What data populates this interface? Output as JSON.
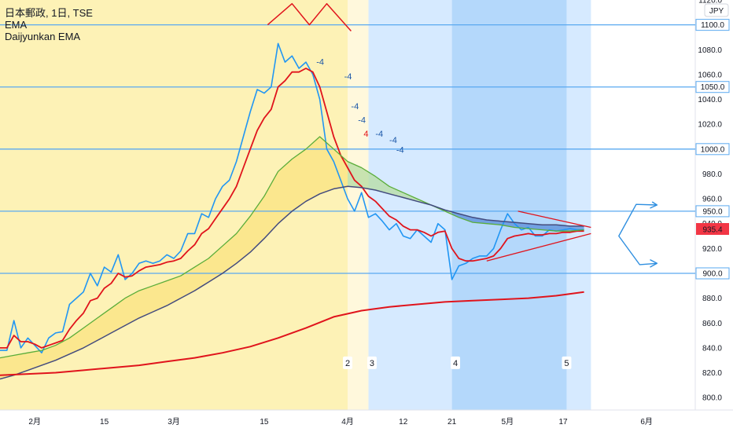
{
  "legend": {
    "symbol_line": "日本郵政, 1日, TSE",
    "ema": "EMA",
    "daijyunkan": "Daijyunkan EMA"
  },
  "chart_data": {
    "type": "line",
    "currency": "JPY",
    "ylim": [
      790,
      1120
    ],
    "y_ticks": [
      "1120.0",
      "1100.0",
      "1080.0",
      "1060.0",
      "1040.0",
      "1020.0",
      "1000.0",
      "980.0",
      "960.0",
      "940.0",
      "920.0",
      "900.0",
      "880.0",
      "860.0",
      "840.0",
      "820.0",
      "800.0"
    ],
    "x_ticks": [
      {
        "label": "2月",
        "x": 5
      },
      {
        "label": "15",
        "x": 15
      },
      {
        "label": "3月",
        "x": 25
      },
      {
        "label": "15",
        "x": 38
      },
      {
        "label": "4月",
        "x": 50
      },
      {
        "label": "12",
        "x": 58
      },
      {
        "label": "21",
        "x": 65
      },
      {
        "label": "5月",
        "x": 73
      },
      {
        "label": "17",
        "x": 81
      },
      {
        "label": "6月",
        "x": 93
      }
    ],
    "x_range": [
      0,
      100
    ],
    "horizontal_levels": [
      {
        "value": 1100,
        "label": "1100.0"
      },
      {
        "value": 1050,
        "label": "1050.0"
      },
      {
        "value": 1000,
        "label": "1000.0"
      },
      {
        "value": 950,
        "label": "950.0"
      },
      {
        "value": 900,
        "label": "900.0"
      }
    ],
    "current_price": {
      "value": 935.4,
      "label": "935.4"
    },
    "background_zones": [
      {
        "from": 0,
        "to": 50,
        "color": "#fdf2b6"
      },
      {
        "from": 50,
        "to": 53,
        "color": "#fff8dc"
      },
      {
        "from": 53,
        "to": 65,
        "color": "#d6eaff"
      },
      {
        "from": 65,
        "to": 81.5,
        "color": "#b4d8fb"
      },
      {
        "from": 81.5,
        "to": 85,
        "color": "#d6eaff"
      }
    ],
    "zone_labels": [
      {
        "label": "2",
        "x": 50,
        "y": 828
      },
      {
        "label": "3",
        "x": 53.5,
        "y": 828
      },
      {
        "label": "4",
        "x": 65.5,
        "y": 828
      },
      {
        "label": "5",
        "x": 81.5,
        "y": 828
      }
    ],
    "series": [
      {
        "name": "",
        "color": "#2196f3",
        "x": [
          0,
          1,
          2,
          3,
          4,
          5,
          6,
          7,
          8,
          9,
          10,
          11,
          12,
          13,
          14,
          15,
          16,
          17,
          18,
          19,
          20,
          21,
          22,
          23,
          24,
          25,
          26,
          27,
          28,
          29,
          30,
          31,
          32,
          33,
          34,
          35,
          36,
          37,
          38,
          39,
          40,
          41,
          42,
          43,
          44,
          45,
          46,
          47,
          48,
          49,
          50,
          51,
          52,
          53,
          54,
          55,
          56,
          57,
          58,
          59,
          60,
          61,
          62,
          63,
          64,
          65,
          66,
          67,
          68,
          69,
          70,
          71,
          72,
          73,
          74,
          75,
          76,
          77,
          78,
          79,
          80,
          81,
          82,
          83,
          84
        ],
        "values": [
          838,
          838,
          862,
          840,
          848,
          842,
          836,
          848,
          852,
          853,
          875,
          880,
          885,
          900,
          890,
          905,
          901,
          915,
          895,
          900,
          908,
          910,
          908,
          910,
          915,
          912,
          918,
          932,
          932,
          948,
          945,
          960,
          970,
          975,
          990,
          1010,
          1030,
          1048,
          1045,
          1050,
          1085,
          1070,
          1075,
          1065,
          1070,
          1060,
          1040,
          1000,
          990,
          975,
          960,
          950,
          965,
          945,
          948,
          942,
          935,
          940,
          930,
          928,
          935,
          930,
          925,
          940,
          935,
          895,
          906,
          908,
          912,
          914,
          914,
          920,
          935,
          948,
          940,
          935,
          937,
          930,
          930,
          935,
          934,
          935,
          936,
          935,
          935
        ]
      },
      {
        "name": "",
        "color": "#e0141c",
        "x": [
          0,
          1,
          2,
          3,
          4,
          5,
          6,
          7,
          8,
          9,
          10,
          11,
          12,
          13,
          14,
          15,
          16,
          17,
          18,
          19,
          20,
          21,
          22,
          23,
          24,
          25,
          26,
          27,
          28,
          29,
          30,
          31,
          32,
          33,
          34,
          35,
          36,
          37,
          38,
          39,
          40,
          41,
          42,
          43,
          44,
          45,
          46,
          47,
          48,
          49,
          50,
          51,
          52,
          53,
          54,
          55,
          56,
          57,
          58,
          59,
          60,
          61,
          62,
          63,
          64,
          65,
          66,
          67,
          68,
          69,
          70,
          71,
          72,
          73,
          74,
          75,
          76,
          77,
          78,
          79,
          80,
          81,
          82,
          83,
          84
        ],
        "values": [
          840,
          840,
          850,
          845,
          845,
          843,
          840,
          842,
          844,
          846,
          855,
          862,
          868,
          878,
          880,
          888,
          892,
          900,
          897,
          898,
          902,
          905,
          906,
          907,
          909,
          910,
          912,
          918,
          923,
          932,
          936,
          944,
          952,
          960,
          970,
          985,
          1000,
          1015,
          1025,
          1032,
          1050,
          1055,
          1062,
          1062,
          1065,
          1062,
          1050,
          1030,
          1010,
          995,
          985,
          975,
          970,
          962,
          958,
          952,
          946,
          943,
          938,
          935,
          935,
          933,
          930,
          933,
          934,
          920,
          912,
          910,
          910,
          911,
          912,
          914,
          920,
          928,
          930,
          931,
          932,
          931,
          931,
          932,
          932,
          933,
          933,
          934,
          934
        ]
      },
      {
        "name": "",
        "color": "#5aad3a",
        "x": [
          0,
          2,
          4,
          6,
          8,
          10,
          12,
          14,
          16,
          18,
          20,
          22,
          24,
          26,
          28,
          30,
          32,
          34,
          36,
          38,
          40,
          42,
          44,
          46,
          48,
          50,
          52,
          54,
          56,
          58,
          60,
          62,
          64,
          66,
          68,
          70,
          72,
          74,
          76,
          78,
          80,
          82,
          84
        ],
        "values": [
          832,
          834,
          836,
          838,
          842,
          848,
          856,
          864,
          872,
          880,
          886,
          890,
          894,
          898,
          905,
          912,
          922,
          932,
          946,
          962,
          982,
          992,
          1000,
          1010,
          1000,
          990,
          985,
          978,
          970,
          965,
          960,
          955,
          950,
          945,
          941,
          940,
          939,
          937,
          936,
          935,
          934,
          934,
          935
        ]
      },
      {
        "name": "",
        "color": "#434b7e",
        "x": [
          0,
          2,
          4,
          6,
          8,
          10,
          12,
          14,
          16,
          18,
          20,
          22,
          24,
          26,
          28,
          30,
          32,
          34,
          36,
          38,
          40,
          42,
          44,
          46,
          48,
          50,
          52,
          54,
          56,
          58,
          60,
          62,
          64,
          66,
          68,
          70,
          72,
          74,
          76,
          78,
          80,
          82,
          84
        ],
        "values": [
          815,
          818,
          822,
          826,
          830,
          835,
          840,
          846,
          852,
          858,
          864,
          869,
          874,
          880,
          886,
          893,
          900,
          908,
          917,
          928,
          940,
          950,
          958,
          964,
          968,
          970,
          969,
          967,
          964,
          961,
          958,
          955,
          951,
          948,
          945,
          943,
          942,
          941,
          940,
          939,
          939,
          938,
          938
        ]
      },
      {
        "name": "",
        "color": "#e0141c",
        "x": [
          0,
          4,
          8,
          12,
          16,
          20,
          24,
          28,
          32,
          36,
          40,
          44,
          48,
          52,
          56,
          60,
          64,
          68,
          72,
          76,
          80,
          84
        ],
        "values": [
          818,
          819,
          820,
          822,
          824,
          826,
          829,
          832,
          836,
          841,
          848,
          856,
          865,
          870,
          873,
          875,
          877,
          878,
          879,
          880,
          882,
          885
        ]
      }
    ],
    "annotations": [
      {
        "text": "-4",
        "x": 45.5,
        "y": 1068,
        "color": "#1a56a8"
      },
      {
        "text": "-4",
        "x": 49.5,
        "y": 1056,
        "color": "#1a56a8"
      },
      {
        "text": "-4",
        "x": 50.5,
        "y": 1032,
        "color": "#1a56a8"
      },
      {
        "text": "-4",
        "x": 51.5,
        "y": 1021,
        "color": "#1a56a8"
      },
      {
        "text": "4",
        "x": 52.3,
        "y": 1010,
        "color": "#e0141c"
      },
      {
        "text": "-4",
        "x": 54.0,
        "y": 1010,
        "color": "#1a56a8"
      },
      {
        "text": "-4",
        "x": 56.0,
        "y": 1005,
        "color": "#1a56a8"
      },
      {
        "text": "-4",
        "x": 57.0,
        "y": 997,
        "color": "#1a56a8"
      }
    ]
  },
  "colors": {
    "blue_price": "#2196f3",
    "red_ema": "#e0141c",
    "green_ema": "#5aad3a",
    "navy_ema": "#434b7e",
    "level_line": "#5aa9f0",
    "fill_yellow": "#fbe58a",
    "fill_green": "#b6dca2",
    "fill_blue": "#5b8fd9"
  }
}
